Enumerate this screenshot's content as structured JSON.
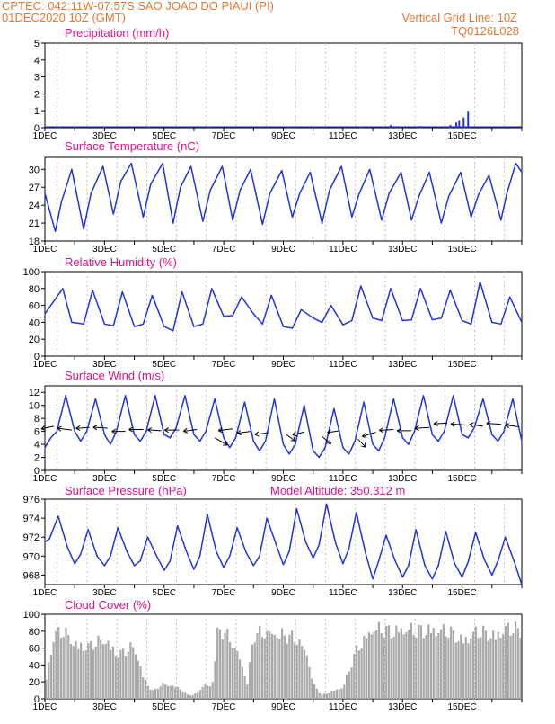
{
  "header": {
    "line1": "CPTEC:   042:11W-07:57S   SAO JOAO DO PIAUI (PI)",
    "line2": "01DEC2020 10Z (GMT)",
    "grid_note": "Vertical Grid Line: 10Z",
    "code": "TQ0126L028"
  },
  "colors": {
    "header": "#e8772e",
    "title": "#e0118a",
    "line": "#2233dd",
    "cloud": "#a9a9a9"
  },
  "x_tick_labels": [
    "1DEC",
    "3DEC",
    "5DEC",
    "7DEC",
    "9DEC",
    "11DEC",
    "13DEC",
    "15DEC"
  ],
  "model_altitude": "Model Altitude: 350.312 m",
  "chart_data": [
    {
      "id": "precip",
      "type": "bar",
      "title": "Precipitation (mm/h)",
      "ylim": [
        0,
        5
      ],
      "yticks": [
        0,
        1,
        2,
        3,
        4,
        5
      ],
      "x": [
        0.5,
        2.0,
        3.5,
        5.5,
        8.2,
        10.6,
        11.6,
        12.6,
        13.6,
        13.8,
        13.9,
        14.05,
        14.2
      ],
      "values": [
        0.05,
        0.04,
        0.05,
        0.05,
        0.04,
        0.05,
        0.15,
        0.1,
        0.15,
        0.3,
        0.45,
        0.6,
        1.0
      ]
    },
    {
      "id": "temp",
      "type": "line",
      "title": "Surface Temperature (nC)",
      "ylim": [
        18,
        32
      ],
      "yticks": [
        18,
        21,
        24,
        27,
        30
      ],
      "x": [
        0.0,
        0.35,
        0.55,
        0.9,
        1.3,
        1.55,
        1.95,
        2.3,
        2.55,
        2.9,
        3.3,
        3.55,
        3.95,
        4.3,
        4.55,
        4.9,
        5.3,
        5.55,
        5.95,
        6.3,
        6.55,
        6.9,
        7.3,
        7.55,
        7.95,
        8.3,
        8.55,
        8.9,
        9.3,
        9.55,
        9.95,
        10.3,
        10.55,
        10.9,
        11.3,
        11.55,
        11.95,
        12.3,
        12.55,
        12.9,
        13.3,
        13.55,
        13.95,
        14.3,
        14.55,
        14.9,
        15.3,
        15.5,
        15.8,
        16.0
      ],
      "values": [
        26.0,
        19.6,
        24.5,
        30.0,
        20.0,
        26.0,
        30.5,
        22.5,
        28.0,
        31.0,
        22.0,
        27.5,
        31.0,
        21.0,
        27.0,
        30.5,
        21.3,
        26.5,
        30.5,
        21.5,
        26.5,
        30.0,
        20.8,
        26.0,
        29.8,
        22.0,
        26.0,
        29.5,
        21.0,
        26.5,
        30.5,
        22.0,
        26.0,
        30.0,
        21.5,
        26.0,
        29.5,
        21.5,
        25.5,
        29.5,
        21.0,
        25.5,
        29.5,
        22.0,
        25.8,
        29.0,
        21.5,
        26.0,
        31.0,
        29.5
      ]
    },
    {
      "id": "rh",
      "type": "line",
      "title": "Relative Humidity (%)",
      "ylim": [
        0,
        100
      ],
      "yticks": [
        0,
        20,
        40,
        60,
        80,
        100
      ],
      "x": [
        0.0,
        0.2,
        0.6,
        0.9,
        1.3,
        1.6,
        2.0,
        2.3,
        2.6,
        3.0,
        3.3,
        3.6,
        4.0,
        4.3,
        4.6,
        5.0,
        5.3,
        5.6,
        6.0,
        6.3,
        6.6,
        7.0,
        7.3,
        7.6,
        8.0,
        8.3,
        8.6,
        9.0,
        9.3,
        9.6,
        10.0,
        10.3,
        10.6,
        11.0,
        11.3,
        11.6,
        12.0,
        12.3,
        12.6,
        13.0,
        13.3,
        13.6,
        14.0,
        14.3,
        14.6,
        15.0,
        15.3,
        15.6,
        16.0
      ],
      "values": [
        50,
        60,
        80,
        40,
        38,
        78,
        38,
        36,
        76,
        35,
        38,
        72,
        35,
        30,
        76,
        35,
        38,
        80,
        47,
        48,
        70,
        50,
        38,
        72,
        35,
        33,
        55,
        45,
        40,
        60,
        37,
        42,
        83,
        45,
        42,
        80,
        42,
        43,
        80,
        43,
        45,
        78,
        42,
        38,
        88,
        40,
        38,
        70,
        40
      ]
    },
    {
      "id": "wind",
      "type": "line",
      "title": "Surface Wind (m/s)",
      "ylim": [
        0,
        13
      ],
      "yticks": [
        0,
        2,
        4,
        6,
        8,
        10,
        12
      ],
      "x": [
        0.0,
        0.2,
        0.4,
        0.7,
        1.0,
        1.2,
        1.4,
        1.7,
        2.0,
        2.2,
        2.4,
        2.7,
        3.0,
        3.2,
        3.4,
        3.7,
        4.0,
        4.2,
        4.4,
        4.7,
        5.0,
        5.2,
        5.4,
        5.7,
        6.0,
        6.2,
        6.4,
        6.7,
        7.0,
        7.2,
        7.4,
        7.7,
        8.0,
        8.2,
        8.4,
        8.7,
        9.0,
        9.2,
        9.4,
        9.7,
        10.0,
        10.2,
        10.4,
        10.7,
        11.0,
        11.2,
        11.4,
        11.7,
        12.0,
        12.2,
        12.4,
        12.7,
        13.0,
        13.2,
        13.4,
        13.7,
        14.0,
        14.2,
        14.4,
        14.7,
        15.0,
        15.2,
        15.4,
        15.7,
        16.0
      ],
      "values": [
        3.5,
        5.0,
        6.0,
        11.5,
        6.0,
        4.5,
        6.0,
        11.0,
        5.5,
        4.0,
        6.0,
        11.5,
        5.5,
        4.5,
        6.0,
        11.5,
        5.5,
        5.0,
        6.5,
        11.5,
        5.5,
        4.5,
        6.0,
        11.0,
        5.0,
        3.5,
        5.0,
        10.5,
        4.5,
        3.0,
        4.5,
        11.0,
        4.0,
        2.5,
        4.0,
        10.0,
        3.0,
        2.0,
        3.5,
        9.5,
        3.5,
        2.5,
        4.5,
        10.5,
        4.0,
        3.0,
        5.0,
        11.0,
        5.0,
        4.0,
        6.0,
        11.5,
        5.5,
        4.5,
        6.0,
        11.5,
        5.5,
        5.0,
        6.5,
        11.0,
        5.5,
        4.5,
        6.0,
        11.0,
        4.5
      ],
      "vectors": {
        "x": [
          0.3,
          0.9,
          1.5,
          2.1,
          2.7,
          3.3,
          3.9,
          4.5,
          5.1,
          5.7,
          6.3,
          6.9,
          7.5,
          8.1,
          8.7,
          9.3,
          9.9,
          10.5,
          11.1,
          11.7,
          12.3,
          12.9,
          13.5,
          14.1,
          14.7,
          15.3,
          15.9
        ],
        "speed": [
          6.8,
          6.2,
          6.6,
          6.5,
          6.0,
          6.3,
          6.1,
          6.2,
          6.3,
          5.0,
          6.4,
          6.0,
          5.8,
          5.5,
          5.9,
          5.2,
          6.1,
          4.8,
          5.9,
          6.3,
          6.1,
          6.6,
          7.3,
          7.0,
          6.8,
          7.1,
          6.7
        ],
        "dx": [
          14,
          16,
          15,
          16,
          15,
          16,
          15,
          16,
          15,
          -14,
          16,
          15,
          15,
          -10,
          13,
          -10,
          14,
          -9,
          15,
          16,
          16,
          16,
          15,
          16,
          15,
          16,
          15
        ],
        "dy": [
          -3,
          2,
          -1,
          1,
          0,
          0,
          1,
          0,
          -2,
          -8,
          -2,
          -2,
          -2,
          -7,
          -3,
          -8,
          -2,
          -9,
          -5,
          -1,
          0,
          -1,
          -1,
          1,
          2,
          1,
          2
        ]
      }
    },
    {
      "id": "pressure",
      "type": "line",
      "title": "Surface Pressure (hPa)",
      "ylim": [
        967,
        976
      ],
      "yticks": [
        968,
        970,
        972,
        974,
        976
      ],
      "x": [
        0.0,
        0.15,
        0.45,
        0.75,
        1.0,
        1.2,
        1.45,
        1.75,
        2.0,
        2.2,
        2.45,
        2.75,
        3.0,
        3.2,
        3.45,
        3.75,
        4.0,
        4.2,
        4.45,
        4.75,
        5.0,
        5.2,
        5.45,
        5.75,
        6.0,
        6.2,
        6.45,
        6.75,
        7.0,
        7.2,
        7.45,
        7.75,
        8.0,
        8.2,
        8.45,
        8.75,
        9.0,
        9.2,
        9.45,
        9.75,
        10.0,
        10.2,
        10.45,
        10.75,
        11.0,
        11.2,
        11.45,
        11.75,
        12.0,
        12.2,
        12.45,
        12.75,
        13.0,
        13.2,
        13.45,
        13.75,
        14.0,
        14.2,
        14.45,
        14.75,
        15.0,
        15.2,
        15.45,
        15.75,
        16.0
      ],
      "values": [
        971.5,
        971.8,
        974.2,
        971.0,
        969.2,
        970.2,
        972.8,
        970.0,
        969.0,
        970.0,
        973.0,
        970.5,
        969.0,
        969.5,
        972.0,
        970.0,
        968.5,
        969.5,
        973.2,
        970.5,
        968.6,
        970.0,
        974.4,
        970.5,
        968.8,
        970.0,
        973.0,
        970.4,
        969.0,
        970.0,
        974.0,
        971.3,
        969.1,
        970.5,
        975.0,
        971.5,
        969.8,
        971.2,
        975.5,
        971.4,
        969.2,
        970.8,
        974.6,
        970.4,
        967.6,
        969.5,
        972.2,
        969.5,
        967.8,
        969.0,
        972.8,
        969.0,
        967.6,
        969.0,
        972.6,
        969.2,
        967.8,
        969.4,
        972.5,
        969.6,
        968.0,
        969.5,
        972.0,
        969.4,
        966.8
      ]
    },
    {
      "id": "cloud",
      "type": "bar",
      "title": "Cloud Cover (%)",
      "ylim": [
        0,
        100
      ],
      "yticks": [
        0,
        20,
        40,
        60,
        80,
        100
      ],
      "profile_x": [
        0.0,
        0.3,
        0.6,
        1.0,
        1.5,
        2.0,
        2.5,
        3.0,
        3.3,
        3.6,
        4.0,
        4.5,
        4.8,
        5.0,
        5.4,
        5.6,
        5.8,
        6.0,
        6.2,
        6.5,
        6.8,
        7.0,
        7.5,
        8.0,
        8.5,
        8.8,
        9.0,
        9.3,
        9.6,
        10.0,
        10.5,
        11.0,
        11.5,
        12.0,
        12.5,
        13.0,
        13.5,
        14.0,
        14.5,
        15.0,
        15.5,
        16.0
      ],
      "profile_y": [
        20,
        85,
        90,
        75,
        70,
        80,
        60,
        70,
        30,
        10,
        20,
        15,
        5,
        5,
        20,
        15,
        90,
        90,
        80,
        60,
        20,
        85,
        90,
        85,
        80,
        60,
        20,
        5,
        10,
        15,
        70,
        95,
        90,
        95,
        90,
        95,
        90,
        80,
        90,
        85,
        95,
        90
      ]
    }
  ]
}
